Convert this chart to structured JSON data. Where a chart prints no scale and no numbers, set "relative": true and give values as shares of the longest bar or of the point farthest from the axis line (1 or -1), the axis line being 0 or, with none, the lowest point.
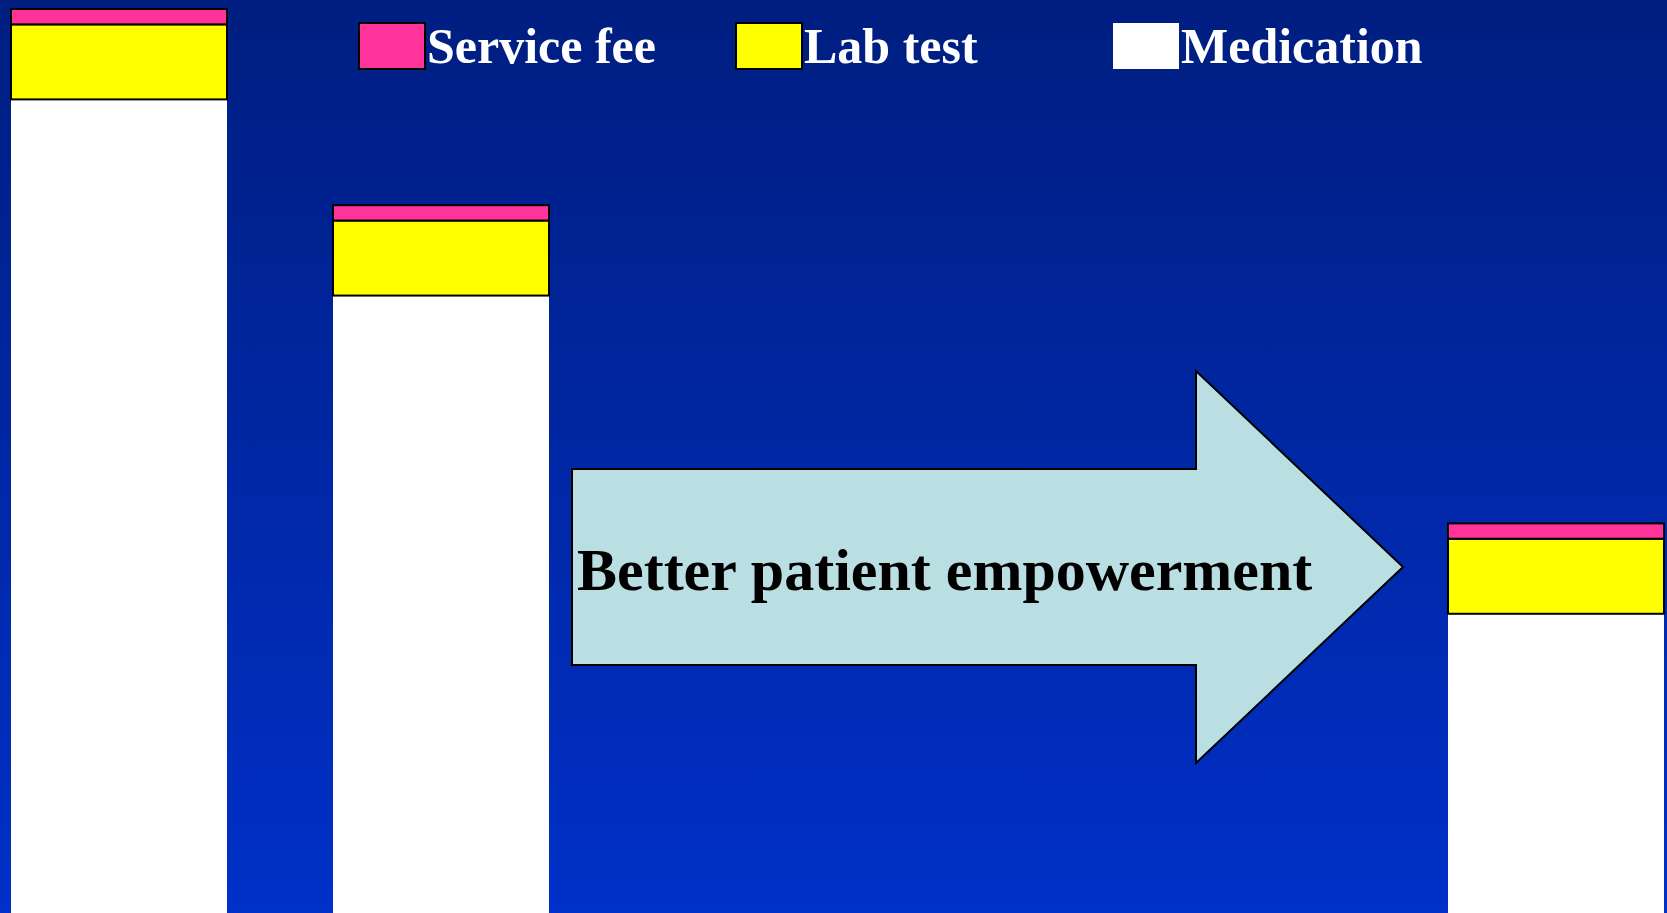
{
  "chart_data": {
    "type": "bar",
    "stacked": true,
    "relative": true,
    "categories": [
      null,
      null,
      null
    ],
    "series": [
      {
        "name": "Medication",
        "color": "#ffffff",
        "values": [
          0.9,
          0.683,
          0.331
        ]
      },
      {
        "name": "Lab test",
        "color": "#ffff00",
        "values": [
          0.083,
          0.083,
          0.083
        ]
      },
      {
        "name": "Service fee",
        "color": "#ff3399",
        "values": [
          0.017,
          0.017,
          0.017
        ]
      }
    ],
    "legend": "top",
    "annotations": [
      "Better patient empowerment"
    ]
  }
}
